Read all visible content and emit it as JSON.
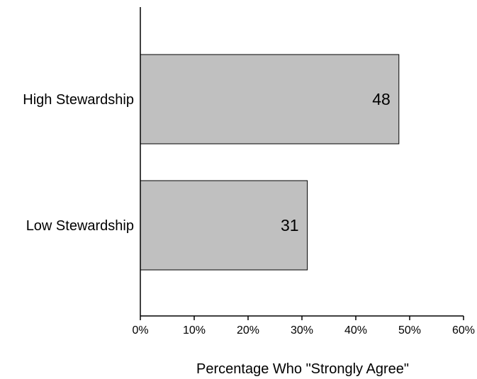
{
  "colors": {
    "bar_fill": "#c0c0c0",
    "bar_stroke": "#000000",
    "axis": "#000000",
    "background": "#ffffff"
  },
  "chart_data": {
    "type": "bar",
    "orientation": "horizontal",
    "categories": [
      "High Stewardship",
      "Low Stewardship"
    ],
    "values": [
      48,
      31
    ],
    "data_labels": [
      "48",
      "31"
    ],
    "xlabel": "Percentage Who \"Strongly Agree\"",
    "ylabel": "",
    "title": "",
    "xlim": [
      0,
      60
    ],
    "x_ticks": [
      0,
      10,
      20,
      30,
      40,
      50,
      60
    ],
    "x_tick_labels": [
      "0%",
      "10%",
      "20%",
      "30%",
      "40%",
      "50%",
      "60%"
    ],
    "grid": false,
    "legend": "none"
  }
}
